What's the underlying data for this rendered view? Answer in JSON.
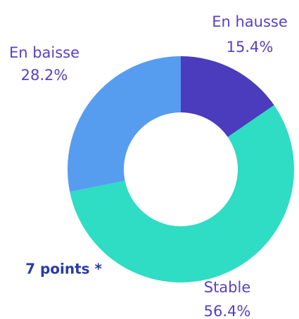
{
  "chart_data": {
    "type": "pie",
    "categories": [
      "En hausse",
      "Stable",
      "En baisse"
    ],
    "values": [
      15.4,
      56.4,
      28.2
    ],
    "value_labels": [
      "15.4%",
      "56.4%",
      "28.2%"
    ],
    "colors": [
      "#4b3bbd",
      "#2fdcc4",
      "#569df0"
    ],
    "annotation": "7 points *"
  }
}
